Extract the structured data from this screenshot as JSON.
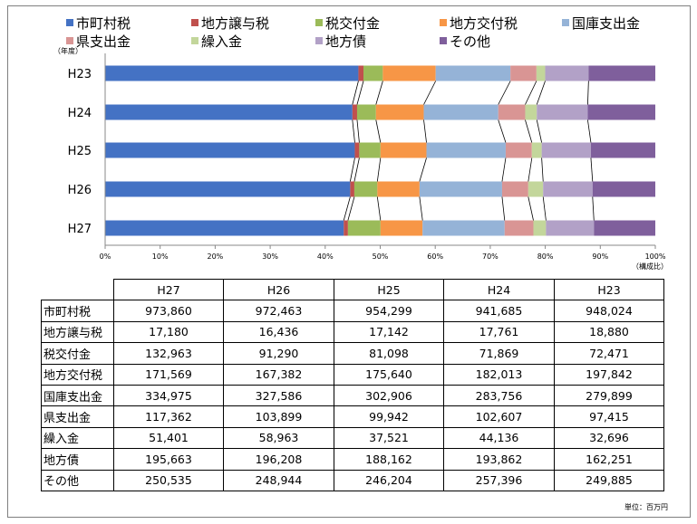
{
  "chart_data": {
    "type": "bar",
    "orientation": "horizontal",
    "stacked": "percent",
    "categories": [
      "H23",
      "H24",
      "H25",
      "H26",
      "H27"
    ],
    "series": [
      {
        "name": "市町村税",
        "color": "#4472c4",
        "values": [
          948024,
          941685,
          954299,
          972463,
          973860
        ]
      },
      {
        "name": "地方譲与税",
        "color": "#c0504d",
        "values": [
          18880,
          17761,
          17142,
          16436,
          17180
        ]
      },
      {
        "name": "税交付金",
        "color": "#9bbb59",
        "values": [
          72471,
          71869,
          81098,
          91290,
          132963
        ]
      },
      {
        "name": "地方交付税",
        "color": "#f79646",
        "values": [
          197842,
          182013,
          175640,
          167382,
          171569
        ]
      },
      {
        "name": "国庫支出金",
        "color": "#95b3d7",
        "values": [
          279899,
          283756,
          302906,
          327586,
          334975
        ]
      },
      {
        "name": "県支出金",
        "color": "#d99594",
        "values": [
          97415,
          102607,
          99942,
          103899,
          117362
        ]
      },
      {
        "name": "繰入金",
        "color": "#c3d69b",
        "values": [
          32696,
          44136,
          37521,
          58963,
          51401
        ]
      },
      {
        "name": "地方債",
        "color": "#b2a1c7",
        "values": [
          162251,
          193862,
          188162,
          196208,
          195663
        ]
      },
      {
        "name": "その他",
        "color": "#7f5f9c",
        "values": [
          249885,
          257396,
          246204,
          248944,
          250535
        ]
      }
    ],
    "xlim": [
      0,
      100
    ],
    "x_ticks": [
      "0%",
      "10%",
      "20%",
      "30%",
      "40%",
      "50%",
      "60%",
      "70%",
      "80%",
      "90%",
      "100%"
    ],
    "x_unit_label": "（構成比）",
    "y_unit_label": "（年度）",
    "grid": false,
    "legend_position": "top"
  },
  "table": {
    "columns": [
      "H27",
      "H26",
      "H25",
      "H24",
      "H23"
    ],
    "rows": [
      {
        "label": "市町村税",
        "values": [
          "973,860",
          "972,463",
          "954,299",
          "941,685",
          "948,024"
        ]
      },
      {
        "label": "地方譲与税",
        "values": [
          "17,180",
          "16,436",
          "17,142",
          "17,761",
          "18,880"
        ]
      },
      {
        "label": "税交付金",
        "values": [
          "132,963",
          "91,290",
          "81,098",
          "71,869",
          "72,471"
        ]
      },
      {
        "label": "地方交付税",
        "values": [
          "171,569",
          "167,382",
          "175,640",
          "182,013",
          "197,842"
        ]
      },
      {
        "label": "国庫支出金",
        "values": [
          "334,975",
          "327,586",
          "302,906",
          "283,756",
          "279,899"
        ]
      },
      {
        "label": "県支出金",
        "values": [
          "117,362",
          "103,899",
          "99,942",
          "102,607",
          "97,415"
        ]
      },
      {
        "label": "繰入金",
        "values": [
          "51,401",
          "58,963",
          "37,521",
          "44,136",
          "32,696"
        ]
      },
      {
        "label": "地方債",
        "values": [
          "195,663",
          "196,208",
          "188,162",
          "193,862",
          "162,251"
        ]
      },
      {
        "label": "その他",
        "values": [
          "250,535",
          "248,944",
          "246,204",
          "257,396",
          "249,885"
        ]
      }
    ]
  },
  "unit_note": "単位：百万円"
}
